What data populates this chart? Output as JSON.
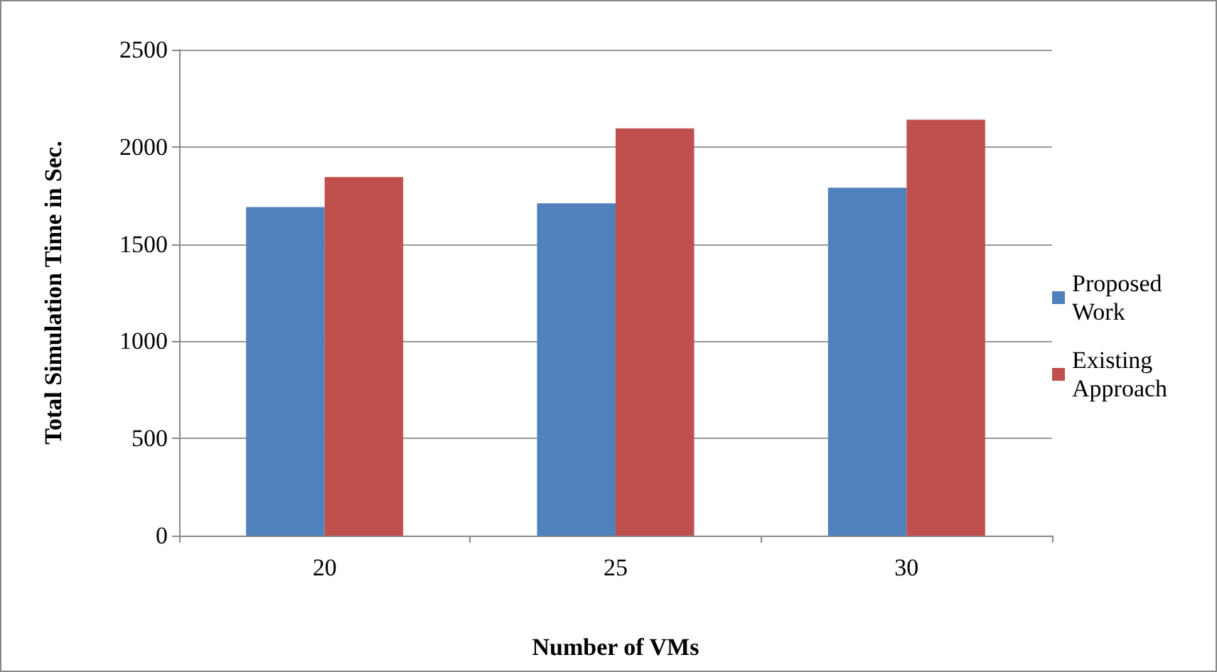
{
  "chart_data": {
    "type": "bar",
    "xlabel": "Number of VMs",
    "ylabel": "Total Simulation Time in Sec.",
    "categories": [
      "20",
      "25",
      "30"
    ],
    "series": [
      {
        "name": "Proposed Work",
        "color": "#4f81bd",
        "values": [
          1690,
          1710,
          1790
        ]
      },
      {
        "name": "Existing Approach",
        "color": "#c0504d",
        "values": [
          1845,
          2095,
          2140
        ]
      }
    ],
    "ylim": [
      0,
      2500
    ],
    "yticks": [
      0,
      500,
      1000,
      1500,
      2000,
      2500
    ],
    "grid": "y",
    "legend": "right"
  }
}
